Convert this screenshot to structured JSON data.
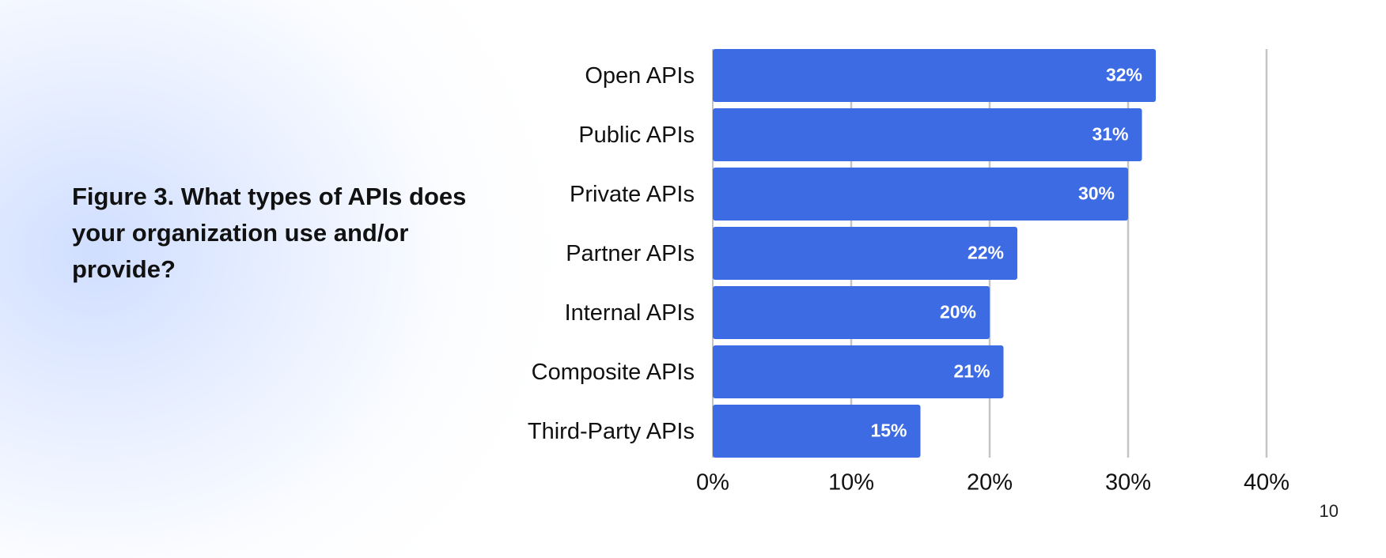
{
  "figure_title": "Figure 3. What types of APIs does your organization use and/or provide?",
  "page_number": "10",
  "colors": {
    "bar": "#3d6be4",
    "bar_label": "#ffffff",
    "grid": "#c4c4c4",
    "text": "#111111"
  },
  "chart_data": {
    "type": "bar",
    "orientation": "horizontal",
    "categories": [
      "Open APIs",
      "Public APIs",
      "Private APIs",
      "Partner APIs",
      "Internal APIs",
      "Composite APIs",
      "Third-Party APIs"
    ],
    "values": [
      32,
      31,
      30,
      22,
      20,
      21,
      15
    ],
    "value_labels": [
      "32%",
      "31%",
      "30%",
      "22%",
      "20%",
      "21%",
      "15%"
    ],
    "xlim": [
      0,
      40
    ],
    "xticks": [
      0,
      10,
      20,
      30,
      40
    ],
    "xtick_labels": [
      "0%",
      "10%",
      "20%",
      "30%",
      "40%"
    ],
    "grid": true,
    "title": "",
    "xlabel": "",
    "ylabel": ""
  }
}
